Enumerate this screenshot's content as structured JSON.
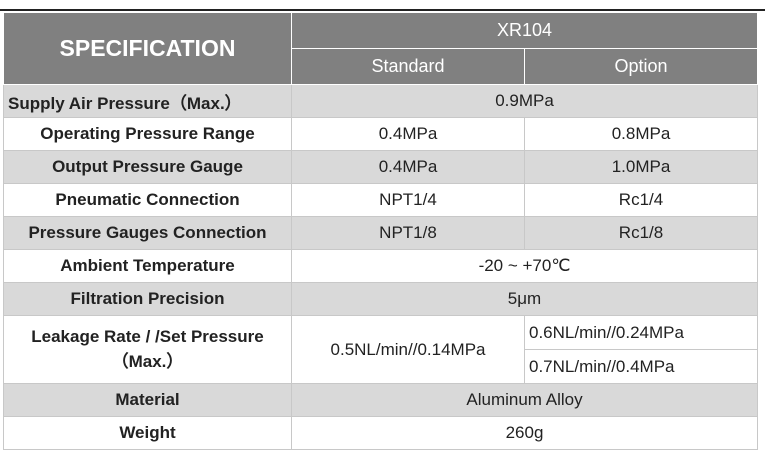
{
  "table": {
    "title": "SPECIFICATION",
    "model": "XR104",
    "columns": [
      "Standard",
      "Option"
    ],
    "rows": [
      {
        "label": "Supply Air Pressure（Max.）",
        "value": "0.9MPa"
      },
      {
        "label": "Operating Pressure Range",
        "standard": "0.4MPa",
        "option": "0.8MPa"
      },
      {
        "label": "Output Pressure Gauge",
        "standard": "0.4MPa",
        "option": "1.0MPa"
      },
      {
        "label": "Pneumatic Connection",
        "standard": "NPT1/4",
        "option": "Rc1/4"
      },
      {
        "label": "Pressure Gauges Connection",
        "standard": "NPT1/8",
        "option": "Rc1/8"
      },
      {
        "label": "Ambient Temperature",
        "value": "-20 ~ +70℃"
      },
      {
        "label": "Filtration Precision",
        "value": "5μm"
      },
      {
        "label": "Leakage Rate / /Set Pressure（Max.）",
        "standard": "0.5NL/min//0.14MPa",
        "option": [
          "0.6NL/min//0.24MPa",
          "0.7NL/min//0.4MPa"
        ]
      },
      {
        "label": "Material",
        "value": "Aluminum Alloy"
      },
      {
        "label": "Weight",
        "value": "260g"
      }
    ]
  }
}
